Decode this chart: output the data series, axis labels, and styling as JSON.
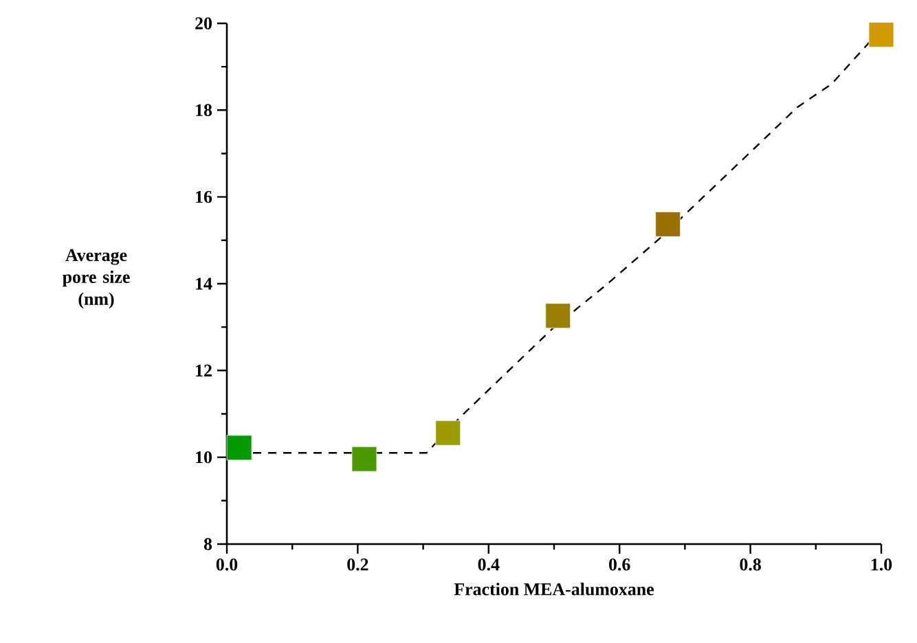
{
  "chart_data": {
    "type": "scatter",
    "xlabel": "Fraction MEA-alumoxane",
    "ylabel": "Average pore size (nm)",
    "xlim": [
      0,
      1
    ],
    "ylim": [
      8,
      20
    ],
    "xticks": [
      {
        "value": 0,
        "label": "0.0"
      },
      {
        "value": 0.2,
        "label": "0.2"
      },
      {
        "value": 0.4,
        "label": "0.4"
      },
      {
        "value": 0.6,
        "label": "0.6"
      },
      {
        "value": 0.8,
        "label": "0.8"
      },
      {
        "value": 1,
        "label": "1.0"
      }
    ],
    "yticks": [
      8,
      10,
      12,
      14,
      16,
      18,
      20
    ],
    "series": [
      {
        "type": "line",
        "color": "#000000",
        "line_style": "dashed",
        "marker": "none",
        "x": [
          0.04,
          0.305,
          0.357,
          0.5,
          0.578,
          0.662,
          0.795,
          0.872,
          0.924,
          0.987
        ],
        "values": [
          10.1,
          10.1,
          10.93,
          13.0,
          13.95,
          15.05,
          16.96,
          18.07,
          18.6,
          19.65
        ]
      },
      {
        "marker": "square",
        "x": [
          0.019,
          0.21,
          0.338,
          0.506,
          0.674,
          1.0
        ],
        "values": [
          10.22,
          9.96,
          10.56,
          13.26,
          15.37,
          19.74
        ],
        "colors": [
          "#009a00",
          "#4a9a00",
          "#9c9c00",
          "#9a8000",
          "#9a7000",
          "#d09a00"
        ]
      }
    ]
  }
}
